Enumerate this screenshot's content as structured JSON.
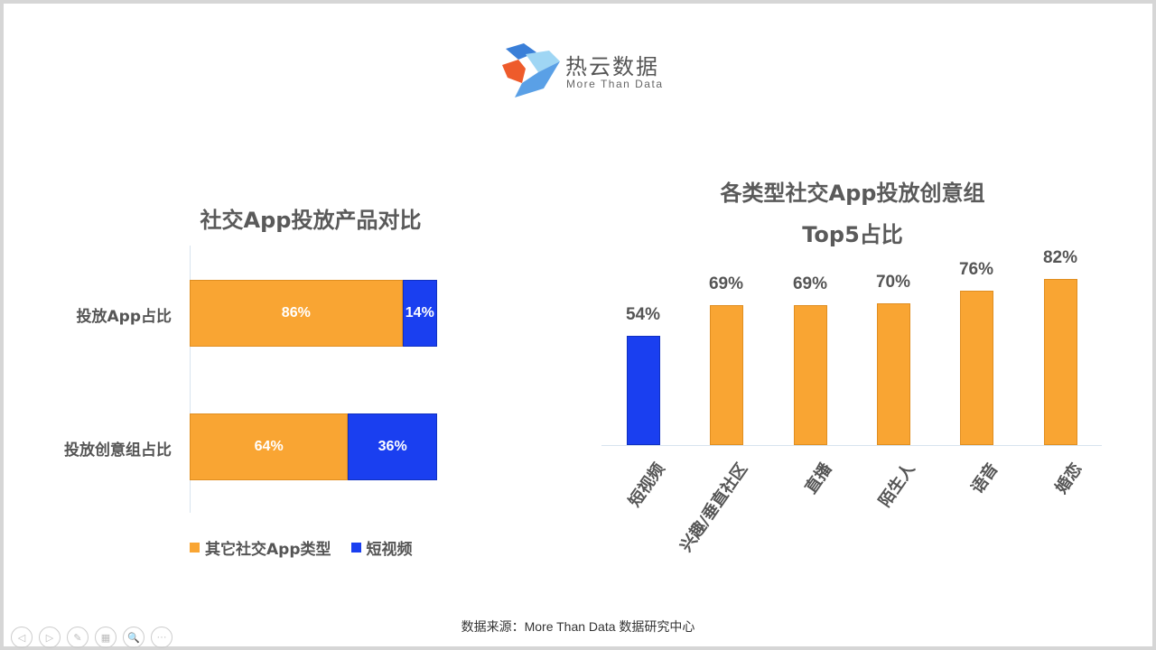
{
  "logo": {
    "cn": "热云数据",
    "en": "More Than Data"
  },
  "colors": {
    "other": "#F9A533",
    "short_video": "#1A3FF0"
  },
  "chart_data": [
    {
      "type": "bar",
      "orientation": "horizontal",
      "stacked": true,
      "title": "社交App投放产品对比",
      "categories": [
        "投放App占比",
        "投放创意组占比"
      ],
      "series": [
        {
          "name": "其它社交App类型",
          "values": [
            86,
            64
          ],
          "labels": [
            "86%",
            "64%"
          ]
        },
        {
          "name": "短视频",
          "values": [
            14,
            36
          ],
          "labels": [
            "14%",
            "36%"
          ]
        }
      ],
      "xlim": [
        0,
        100
      ],
      "legend": "bottom"
    },
    {
      "type": "bar",
      "title": "各类型社交App投放创意组",
      "subtitle": "Top5占比",
      "categories": [
        "短视频",
        "兴趣/垂直社区",
        "直播",
        "陌生人",
        "语音",
        "婚恋"
      ],
      "values": [
        54,
        69,
        69,
        70,
        76,
        82
      ],
      "labels": [
        "54%",
        "69%",
        "69%",
        "70%",
        "76%",
        "82%"
      ],
      "highlight": [
        "短视频"
      ],
      "ylim": [
        0,
        100
      ]
    }
  ],
  "footer": {
    "source": "数据来源：More Than Data 数据研究中心"
  },
  "nav": [
    {
      "icon": "prev-icon",
      "glyph": "◁"
    },
    {
      "icon": "next-icon",
      "glyph": "▷"
    },
    {
      "icon": "pen-icon",
      "glyph": "✎"
    },
    {
      "icon": "slides-icon",
      "glyph": "▦"
    },
    {
      "icon": "zoom-icon",
      "glyph": "🔍"
    },
    {
      "icon": "more-icon",
      "glyph": "···"
    }
  ]
}
